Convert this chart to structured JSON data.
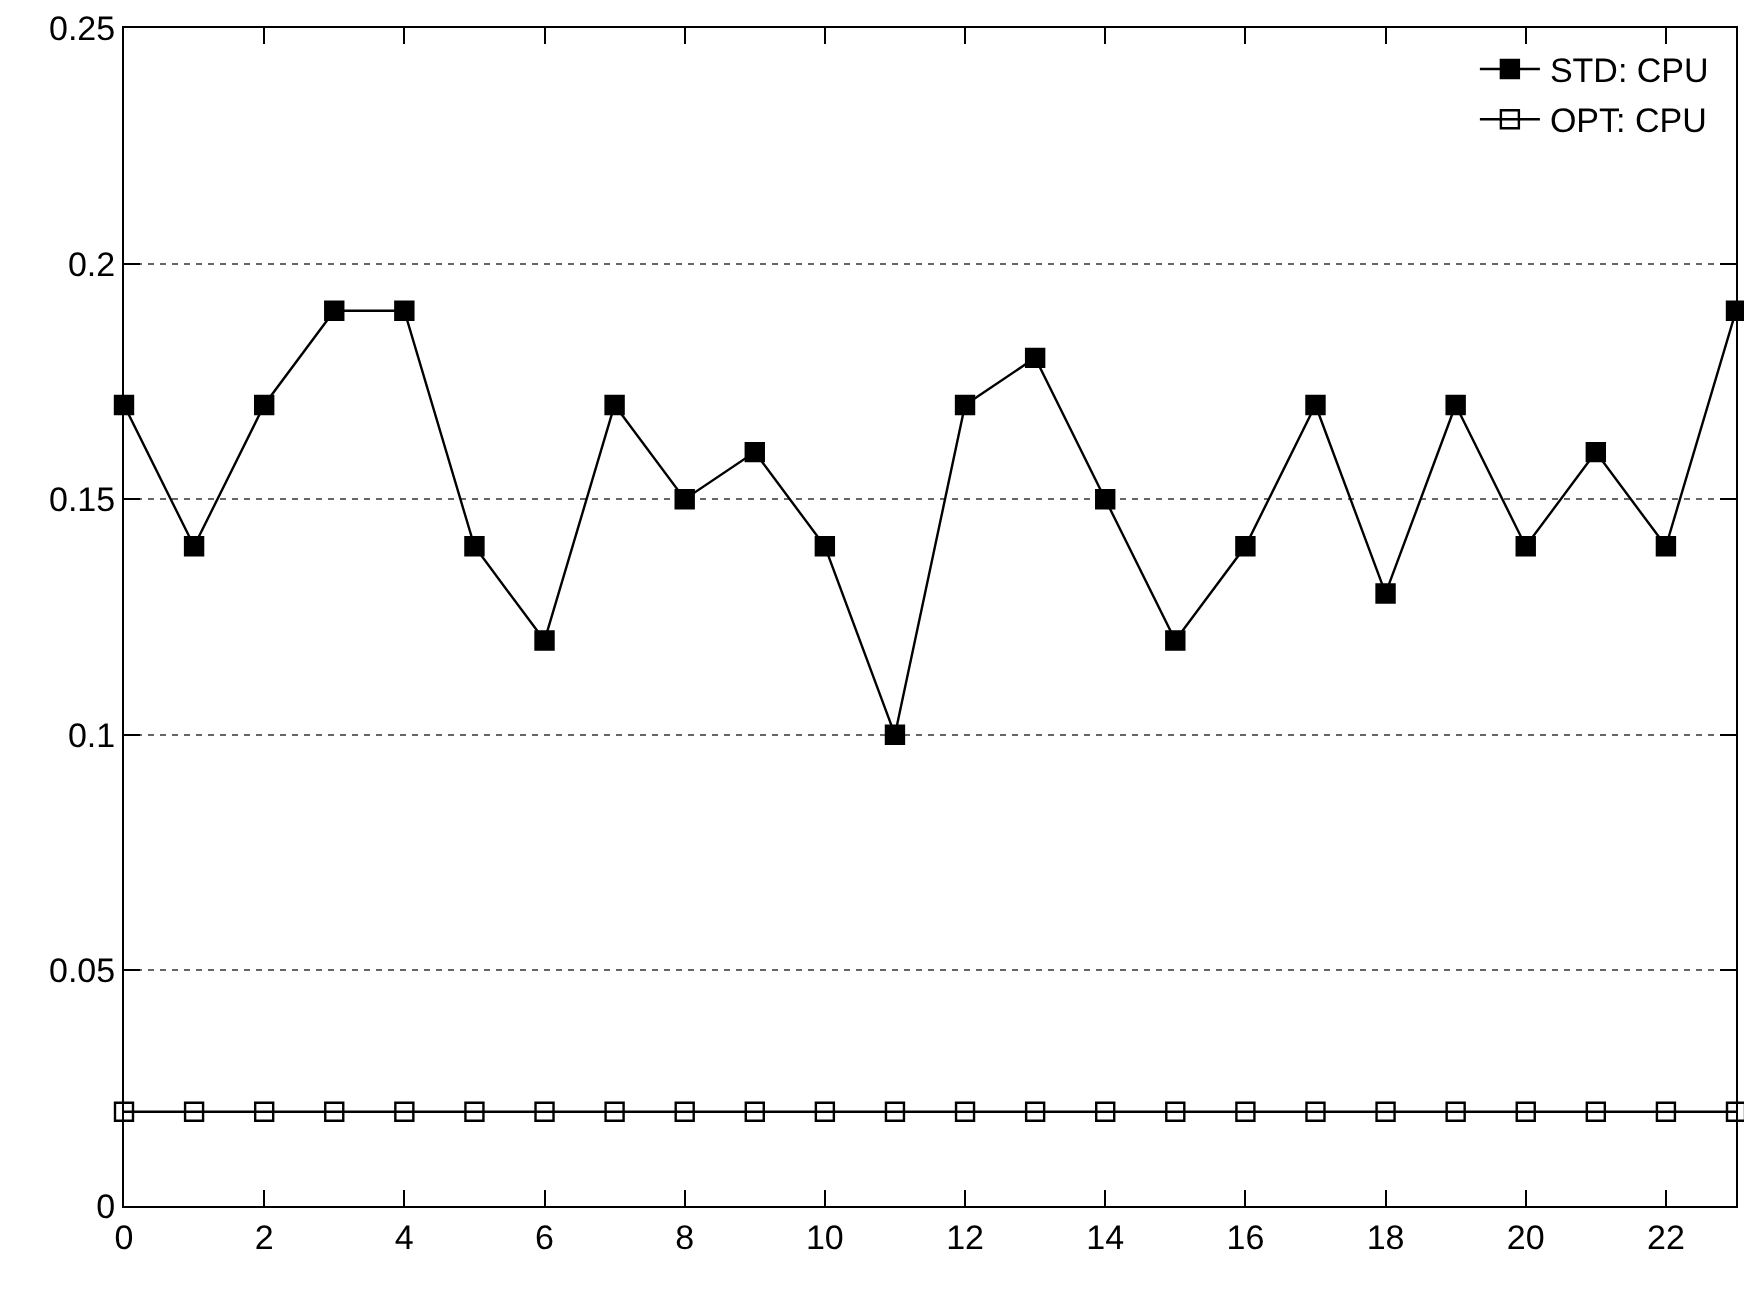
{
  "chart_data": {
    "type": "line",
    "x": [
      0,
      1,
      2,
      3,
      4,
      5,
      6,
      7,
      8,
      9,
      10,
      11,
      12,
      13,
      14,
      15,
      16,
      17,
      18,
      19,
      20,
      21,
      22,
      23
    ],
    "series": [
      {
        "name": "STD: CPU",
        "color": "#000000",
        "marker": "square",
        "values": [
          0.17,
          0.14,
          0.17,
          0.19,
          0.19,
          0.14,
          0.12,
          0.17,
          0.15,
          0.16,
          0.14,
          0.1,
          0.17,
          0.18,
          0.15,
          0.12,
          0.14,
          0.17,
          0.13,
          0.17,
          0.14,
          0.16,
          0.14,
          0.19
        ]
      },
      {
        "name": "OPT: CPU",
        "color": "#000000",
        "marker": "square-open",
        "values": [
          0.02,
          0.02,
          0.02,
          0.02,
          0.02,
          0.02,
          0.02,
          0.02,
          0.02,
          0.02,
          0.02,
          0.02,
          0.02,
          0.02,
          0.02,
          0.02,
          0.02,
          0.02,
          0.02,
          0.02,
          0.02,
          0.02,
          0.02,
          0.02
        ]
      }
    ],
    "xlim": [
      0,
      23
    ],
    "xticks": [
      0,
      2,
      4,
      6,
      8,
      10,
      12,
      14,
      16,
      18,
      20,
      22
    ],
    "ylim": [
      0,
      0.25
    ],
    "yticks": [
      {
        "value": 0,
        "label": "0"
      },
      0.05,
      0.1,
      0.15,
      0.2,
      0.25
    ],
    "grid": "y",
    "legend": "top right",
    "line_style": "solid"
  }
}
